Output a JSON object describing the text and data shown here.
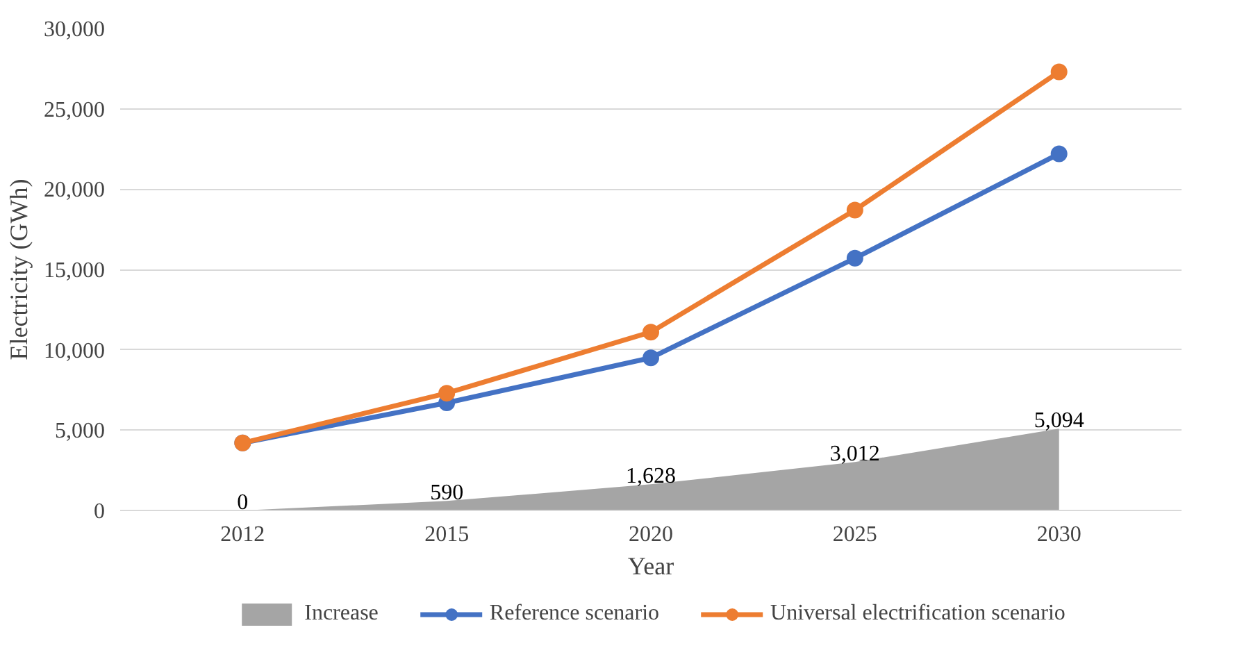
{
  "chart_data": {
    "type": "line",
    "xlabel": "Year",
    "ylabel": "Electricity (GWh)",
    "categories": [
      "2012",
      "2015",
      "2020",
      "2025",
      "2030"
    ],
    "ylim": [
      0,
      30000
    ],
    "yticks": [
      {
        "value": 0,
        "label": "0"
      },
      {
        "value": 5000,
        "label": "5,000"
      },
      {
        "value": 10000,
        "label": "10,000"
      },
      {
        "value": 15000,
        "label": "15,000"
      },
      {
        "value": 20000,
        "label": "20,000"
      },
      {
        "value": 25000,
        "label": "25,000"
      },
      {
        "value": 30000,
        "label": "30,000"
      }
    ],
    "grid": "y",
    "legend": "bottom",
    "marker": "circle",
    "line_style": "solid",
    "series": [
      {
        "name": "Increase",
        "type": "area",
        "marker": "none",
        "color": "#a5a5a5",
        "values": [
          0,
          590,
          1628,
          3012,
          5094
        ],
        "value_labels": [
          "0",
          "590",
          "1,628",
          "3,012",
          "5,094"
        ]
      },
      {
        "name": "Reference scenario",
        "color": "#4472c4",
        "values": [
          4200,
          6700,
          9500,
          15700,
          22200
        ]
      },
      {
        "name": "Universal electrification scenario",
        "color": "#ed7d31",
        "values": [
          4200,
          7300,
          11100,
          18700,
          27300
        ]
      }
    ]
  }
}
